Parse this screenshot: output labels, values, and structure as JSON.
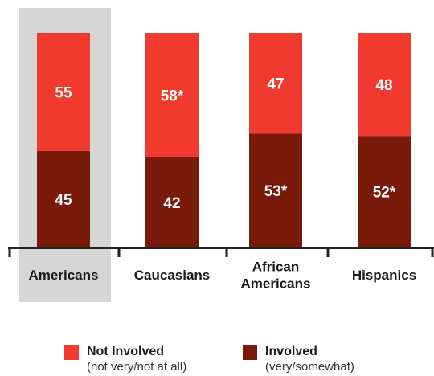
{
  "chart_data": {
    "type": "bar",
    "stacked": true,
    "categories": [
      [
        "Americans"
      ],
      [
        "Caucasians"
      ],
      [
        "African",
        "Americans"
      ],
      [
        "Hispanics"
      ]
    ],
    "highlighted_category_index": 0,
    "series": [
      {
        "name": "Involved",
        "note": "(very/somewhat)",
        "values": [
          45,
          42,
          53,
          52
        ],
        "labels": [
          "45",
          "42",
          "53*",
          "52*"
        ],
        "color": "#7a1a0a"
      },
      {
        "name": "Not Involved",
        "note": "(not very/not at all)",
        "values": [
          55,
          58,
          47,
          48
        ],
        "labels": [
          "55",
          "58*",
          "47",
          "48"
        ],
        "color": "#f03a2e"
      }
    ],
    "ylim": [
      0,
      100
    ],
    "grid": false,
    "legend_position": "bottom",
    "highlight_color": "#d6d6d6",
    "label_color": "#ffffff"
  }
}
